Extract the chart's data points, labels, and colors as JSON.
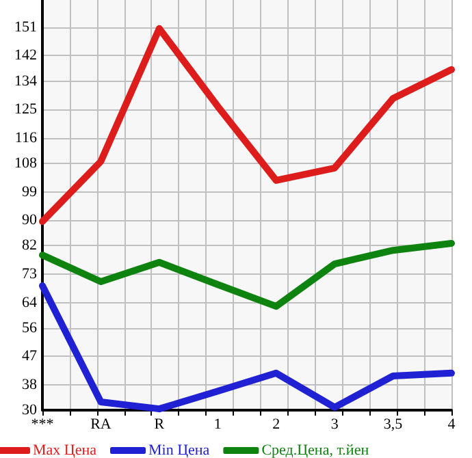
{
  "chart_data": {
    "type": "line",
    "categories": [
      "***",
      "RA",
      "R",
      "1",
      "2",
      "3",
      "3,5",
      "4"
    ],
    "series": [
      {
        "name": "Max Цена",
        "color": "#dd1c1c",
        "values": [
          89.6,
          108.6,
          150.6,
          126,
          102.6,
          106.5,
          128.5,
          137.6
        ]
      },
      {
        "name": "Min Цена",
        "color": "#2121d4",
        "values": [
          69.3,
          32.6,
          30.4,
          36,
          41.7,
          30.9,
          40.8,
          41.7
        ]
      },
      {
        "name": "Сред.Цена, т.йен",
        "color": "#0f830f",
        "values": [
          79,
          70.6,
          76.7,
          69.7,
          62.8,
          76.2,
          80.5,
          82.7
        ]
      }
    ],
    "ylim": [
      30,
      159.6
    ],
    "yticks": [
      30,
      38,
      47,
      56,
      64,
      73,
      82,
      90,
      99,
      108,
      116,
      125,
      134,
      142,
      151
    ],
    "grid": true,
    "legend": "bottom",
    "marker": "none",
    "line_style": "solid"
  }
}
